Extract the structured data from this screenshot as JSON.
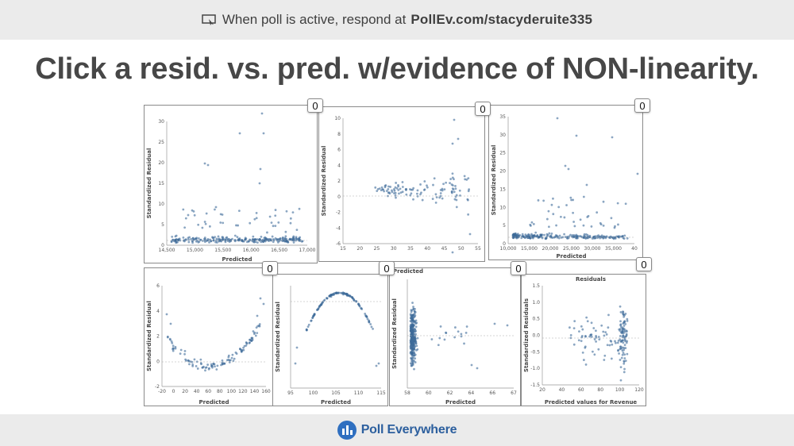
{
  "header": {
    "prefix": "When poll is active, respond at",
    "url": "PollEv.com/stacyderuite335"
  },
  "question": {
    "title": "Click a resid. vs. pred. w/evidence of NON-linearity."
  },
  "footer": {
    "brand": "Poll Everywhere"
  },
  "panels": [
    {
      "count": "0",
      "ylabel": "Standardized Residual",
      "xlabel": "Predicted",
      "xticks": [
        "14,500",
        "15,000",
        "15,500",
        "16,000",
        "16,500",
        "17,000"
      ],
      "yticks": [
        "30",
        "25",
        "20",
        "15",
        "10",
        "5",
        "0"
      ]
    },
    {
      "count": "0",
      "ylabel": "Standardized Residual",
      "xlabel": "",
      "xticks": [
        "15",
        "20",
        "25",
        "30",
        "35",
        "40",
        "45",
        "50",
        "55"
      ],
      "yticks": [
        "10",
        "8",
        "6",
        "4",
        "2",
        "0",
        "-2",
        "-4",
        "-6"
      ]
    },
    {
      "count": "0",
      "ylabel": "Standardized Residual",
      "xlabel": "Predicted",
      "xticks": [
        "10,000",
        "15,000",
        "20,000",
        "25,000",
        "30,000",
        "35,000",
        "40"
      ],
      "yticks": [
        "35",
        "30",
        "25",
        "20",
        "15",
        "10",
        "5",
        "0"
      ]
    },
    {
      "count": "0",
      "ylabel": "Standardized Residual",
      "xlabel": "Predicted",
      "xticks": [
        "-20",
        "0",
        "20",
        "40",
        "60",
        "80",
        "100",
        "120",
        "140",
        "160"
      ],
      "yticks": [
        "6",
        "4",
        "2",
        "0",
        "-2"
      ]
    },
    {
      "count": "0",
      "ylabel": "Standardized Residual",
      "xlabel": "Predicted",
      "xticks": [
        "95",
        "100",
        "105",
        "110",
        "115"
      ],
      "yticks": []
    },
    {
      "count": "0",
      "ylabel": "Standardized Residual",
      "xlabel": "Predicted",
      "extra_label": "Predicted",
      "xticks": [
        "58",
        "60",
        "62",
        "64",
        "66",
        "67"
      ],
      "yticks": []
    },
    {
      "count": "0",
      "ylabel": "Standardized Residuals",
      "xlabel": "Predicted values for Revenue",
      "title": "Residuals",
      "xticks": [
        "20",
        "40",
        "60",
        "80",
        "100",
        "120"
      ],
      "yticks": [
        "1.5",
        "1.0",
        "0.5",
        "0.0",
        "-0.5",
        "-1.0",
        "-1.5"
      ]
    }
  ],
  "colors": {
    "dot": "#3d6b9a",
    "brand": "#2c5f9e"
  }
}
